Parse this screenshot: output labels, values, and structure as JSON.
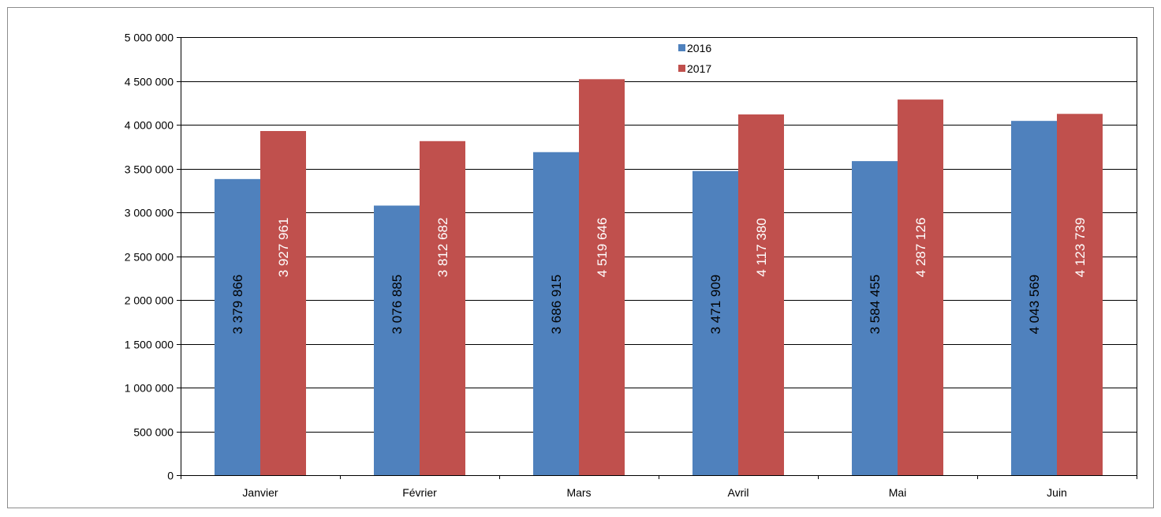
{
  "chart_data": {
    "type": "bar",
    "title": "",
    "xlabel": "",
    "ylabel": "",
    "categories": [
      "Janvier",
      "Février",
      "Mars",
      "Avril",
      "Mai",
      "Juin"
    ],
    "series": [
      {
        "name": "2016",
        "color": "#4f81bd",
        "label_color": "#000000",
        "values": [
          3379866,
          3076885,
          3686915,
          3471909,
          3584455,
          4043569
        ],
        "labels": [
          "3 379 866",
          "3 076 885",
          "3 686 915",
          "3 471 909",
          "3 584 455",
          "4 043 569"
        ]
      },
      {
        "name": "2017",
        "color": "#c0504d",
        "label_color": "#ffffff",
        "values": [
          3927961,
          3812682,
          4519646,
          4117380,
          4287126,
          4123739
        ],
        "labels": [
          "3 927 961",
          "3 812 682",
          "4 519 646",
          "4 117 380",
          "4 287 126",
          "4 123 739"
        ]
      }
    ],
    "ylim": [
      0,
      5000000
    ],
    "yticks": [
      0,
      500000,
      1000000,
      1500000,
      2000000,
      2500000,
      3000000,
      3500000,
      4000000,
      4500000,
      5000000
    ],
    "ytick_labels": [
      "0",
      "500 000",
      "1 000 000",
      "1 500 000",
      "2 000 000",
      "2 500 000",
      "3 000 000",
      "3 500 000",
      "4 000 000",
      "4 500 000",
      "5 000 000"
    ],
    "grid": true,
    "legend_position": "top-center",
    "data_label_orientation": "vertical"
  }
}
